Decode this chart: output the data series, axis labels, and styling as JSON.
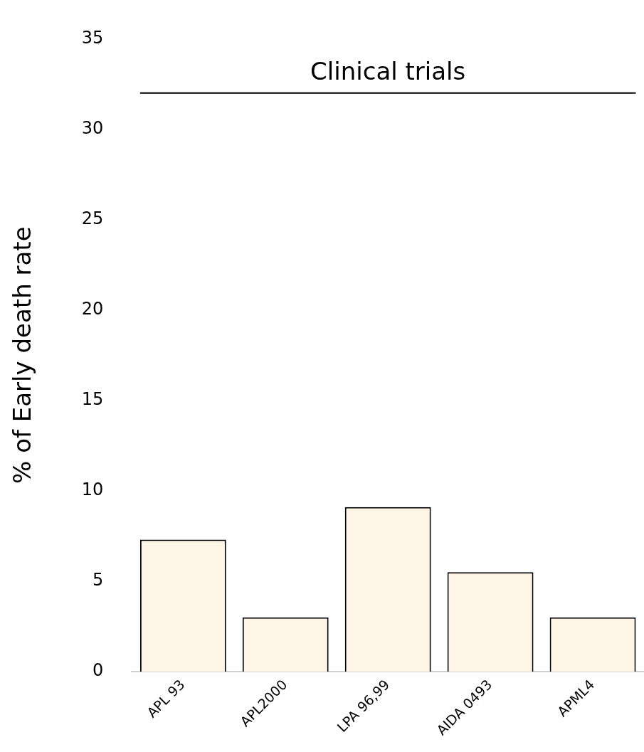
{
  "chart_data": {
    "type": "bar",
    "ylabel": "% of Early death rate",
    "categories": [
      "APL 93",
      "APL2000",
      "LPA 96,99",
      "AIDA 0493",
      "APML4"
    ],
    "values": [
      7.3,
      3,
      9.1,
      5.5,
      3
    ],
    "color": "#fdf5e6",
    "ylim": [
      0,
      35
    ],
    "yticks": [
      0,
      5,
      10,
      15,
      20,
      25,
      30,
      35
    ],
    "grid": false,
    "ref_lines": [
      {
        "axis": "y",
        "value": 32,
        "label": "Clinical trials",
        "color": "#000000"
      }
    ]
  }
}
